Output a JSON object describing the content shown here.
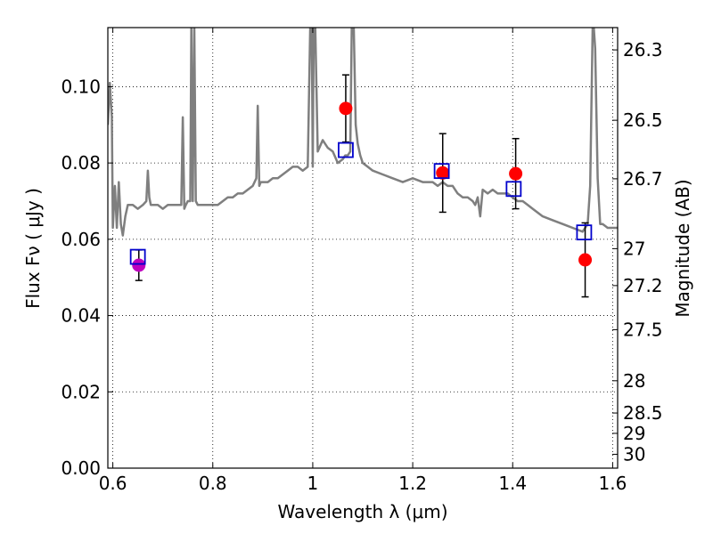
{
  "chart_data": {
    "type": "scatter",
    "xlabel": "Wavelength  λ (μm)",
    "ylabel": "Flux  Fν  ( μJy )",
    "y2label": "Magnitude (AB)",
    "xlim": [
      0.59,
      1.61
    ],
    "ylim": [
      0.0,
      0.1155
    ],
    "grid": true,
    "x_ticks": [
      {
        "value": 0.6,
        "label": "0.6"
      },
      {
        "value": 0.8,
        "label": "0.8"
      },
      {
        "value": 1.0,
        "label": "1"
      },
      {
        "value": 1.2,
        "label": "1.2"
      },
      {
        "value": 1.4,
        "label": "1.4"
      },
      {
        "value": 1.6,
        "label": "1.6"
      }
    ],
    "y_ticks": [
      {
        "value": 0.0,
        "label": "0.00"
      },
      {
        "value": 0.02,
        "label": "0.02"
      },
      {
        "value": 0.04,
        "label": "0.04"
      },
      {
        "value": 0.06,
        "label": "0.06"
      },
      {
        "value": 0.08,
        "label": "0.08"
      },
      {
        "value": 0.1,
        "label": "0.10"
      }
    ],
    "y2_ticks": [
      {
        "value": 26.3,
        "label": "26.3"
      },
      {
        "value": 26.5,
        "label": "26.5"
      },
      {
        "value": 26.7,
        "label": "26.7"
      },
      {
        "value": 27.0,
        "label": "27"
      },
      {
        "value": 27.2,
        "label": "27.2"
      },
      {
        "value": 27.5,
        "label": "27.5"
      },
      {
        "value": 28.0,
        "label": "28"
      },
      {
        "value": 28.5,
        "label": "28.5"
      },
      {
        "value": 29.0,
        "label": "29"
      },
      {
        "value": 30.0,
        "label": "30"
      }
    ],
    "series": [
      {
        "kind": "line",
        "color": "#7f7f7f",
        "x": [
          0.59,
          0.594,
          0.598,
          0.6,
          0.604,
          0.608,
          0.612,
          0.616,
          0.62,
          0.625,
          0.63,
          0.64,
          0.65,
          0.66,
          0.667,
          0.67,
          0.673,
          0.676,
          0.68,
          0.69,
          0.7,
          0.71,
          0.72,
          0.73,
          0.737,
          0.74,
          0.743,
          0.746,
          0.75,
          0.755,
          0.757,
          0.76,
          0.763,
          0.766,
          0.77,
          0.78,
          0.79,
          0.8,
          0.81,
          0.82,
          0.83,
          0.84,
          0.85,
          0.86,
          0.87,
          0.88,
          0.887,
          0.89,
          0.893,
          0.896,
          0.9,
          0.91,
          0.92,
          0.93,
          0.94,
          0.95,
          0.96,
          0.97,
          0.98,
          0.99,
          0.995,
          0.998,
          1.0,
          1.002,
          1.005,
          1.01,
          1.02,
          1.03,
          1.04,
          1.05,
          1.06,
          1.065,
          1.07,
          1.075,
          1.078,
          1.082,
          1.086,
          1.09,
          1.095,
          1.1,
          1.11,
          1.12,
          1.14,
          1.16,
          1.18,
          1.2,
          1.22,
          1.24,
          1.25,
          1.26,
          1.27,
          1.28,
          1.29,
          1.3,
          1.31,
          1.32,
          1.325,
          1.33,
          1.335,
          1.34,
          1.35,
          1.36,
          1.37,
          1.38,
          1.39,
          1.4,
          1.41,
          1.42,
          1.43,
          1.44,
          1.45,
          1.46,
          1.48,
          1.5,
          1.52,
          1.54,
          1.55,
          1.555,
          1.56,
          1.562,
          1.565,
          1.57,
          1.575,
          1.58,
          1.59,
          1.6,
          1.61
        ],
        "y": [
          0.09,
          0.101,
          0.092,
          0.063,
          0.074,
          0.063,
          0.075,
          0.064,
          0.061,
          0.066,
          0.069,
          0.069,
          0.068,
          0.069,
          0.07,
          0.078,
          0.071,
          0.069,
          0.069,
          0.069,
          0.068,
          0.069,
          0.069,
          0.069,
          0.069,
          0.092,
          0.068,
          0.069,
          0.07,
          0.07,
          0.116,
          0.07,
          0.116,
          0.07,
          0.069,
          0.069,
          0.069,
          0.069,
          0.069,
          0.07,
          0.071,
          0.071,
          0.072,
          0.072,
          0.073,
          0.074,
          0.076,
          0.095,
          0.074,
          0.075,
          0.075,
          0.075,
          0.076,
          0.076,
          0.077,
          0.078,
          0.079,
          0.079,
          0.078,
          0.079,
          0.116,
          0.116,
          0.079,
          0.116,
          0.116,
          0.083,
          0.086,
          0.084,
          0.083,
          0.08,
          0.081,
          0.082,
          0.082,
          0.083,
          0.116,
          0.116,
          0.09,
          0.085,
          0.082,
          0.08,
          0.079,
          0.078,
          0.077,
          0.076,
          0.075,
          0.076,
          0.075,
          0.075,
          0.074,
          0.075,
          0.074,
          0.074,
          0.072,
          0.071,
          0.071,
          0.07,
          0.069,
          0.071,
          0.066,
          0.073,
          0.072,
          0.073,
          0.072,
          0.072,
          0.072,
          0.071,
          0.07,
          0.07,
          0.069,
          0.068,
          0.067,
          0.066,
          0.065,
          0.064,
          0.063,
          0.062,
          0.064,
          0.074,
          0.116,
          0.116,
          0.11,
          0.076,
          0.064,
          0.064,
          0.063,
          0.063,
          0.063
        ]
      },
      {
        "kind": "points",
        "marker": "circle",
        "color": "#ff0000",
        "points": [
          {
            "x": 1.066,
            "y": 0.0943,
            "err": 0.0088
          },
          {
            "x": 1.26,
            "y": 0.0774,
            "err": 0.0103
          },
          {
            "x": 1.406,
            "y": 0.0772,
            "err": 0.0092
          },
          {
            "x": 1.545,
            "y": 0.0546,
            "err": 0.0097
          }
        ]
      },
      {
        "kind": "points",
        "marker": "circle",
        "color": "#bf00bf",
        "points": [
          {
            "x": 0.652,
            "y": 0.0532,
            "err": 0.004
          }
        ]
      },
      {
        "kind": "points",
        "marker": "square",
        "color": "#0000cc",
        "points": [
          {
            "x": 0.65,
            "y": 0.0554
          },
          {
            "x": 1.066,
            "y": 0.0834
          },
          {
            "x": 1.258,
            "y": 0.0779
          },
          {
            "x": 1.402,
            "y": 0.0732
          },
          {
            "x": 1.543,
            "y": 0.0618
          }
        ]
      }
    ]
  }
}
